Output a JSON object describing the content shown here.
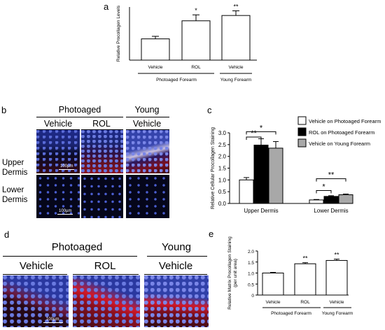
{
  "panel_labels": {
    "a": "a",
    "b": "b",
    "c": "c",
    "d": "d",
    "e": "e"
  },
  "panel_b": {
    "headers": {
      "photoaged": "Photoaged",
      "young": "Young",
      "vehicle": "Vehicle",
      "rol": "ROL",
      "vehicle_young": "Vehicle"
    },
    "rows": [
      "Upper Dermis",
      "Lower Dermis"
    ],
    "scale_bar": "100µm"
  },
  "panel_d": {
    "headers": {
      "photoaged": "Photoaged",
      "young": "Young",
      "vehicle": "Vehicle",
      "rol": "ROL",
      "vehicle_young": "Vehicle"
    },
    "scale_bar": "100µm"
  },
  "chart_data": [
    {
      "panel": "a",
      "type": "bar",
      "categories": [
        "Vehicle",
        "ROL",
        "Vehicle"
      ],
      "groups": [
        "Photoaged Forearm",
        "Young Forearm"
      ],
      "values": [
        1.0,
        1.85,
        2.1
      ],
      "errors": [
        0.12,
        0.28,
        0.22
      ],
      "significance": [
        "",
        "*",
        "**"
      ],
      "ylabel": "Relative Procollagen Levels",
      "ylim": [
        0,
        2.5
      ],
      "yticks": []
    },
    {
      "panel": "c",
      "type": "bar",
      "categories": [
        "Upper Dermis",
        "Lower Dermis"
      ],
      "series": [
        {
          "name": "Vehicle on Photoaged Forearm",
          "values": [
            1.0,
            0.15
          ],
          "errors": [
            0.1,
            0.02
          ],
          "color": "#ffffff"
        },
        {
          "name": "ROL on Photoaged Forearm",
          "values": [
            2.48,
            0.3
          ],
          "errors": [
            0.27,
            0.03
          ],
          "color": "#000000"
        },
        {
          "name": "Vehicle on Young Forearm",
          "values": [
            2.35,
            0.37
          ],
          "errors": [
            0.28,
            0.03
          ],
          "color": "#a8a8a8"
        }
      ],
      "significance": [
        {
          "group": "Upper Dermis",
          "from": 0,
          "to": 1,
          "mark": "**"
        },
        {
          "group": "Upper Dermis",
          "from": 0,
          "to": 2,
          "mark": "*"
        },
        {
          "group": "Lower Dermis",
          "from": 0,
          "to": 1,
          "mark": "*"
        },
        {
          "group": "Lower Dermis",
          "from": 0,
          "to": 2,
          "mark": "**"
        }
      ],
      "ylabel": "Relative Cellular Procollagen Staining",
      "ylim": [
        0,
        3.0
      ],
      "yticks": [
        "0.0",
        "0.5",
        "1.0",
        "1.5",
        "2.0",
        "2.5",
        "3.0"
      ],
      "legend": "top-right"
    },
    {
      "panel": "e",
      "type": "bar",
      "categories": [
        "Vehicle",
        "ROL",
        "Vehicle"
      ],
      "groups": [
        "Photoaged Forearm",
        "Young Forearm"
      ],
      "values": [
        1.0,
        1.42,
        1.57
      ],
      "errors": [
        0.03,
        0.05,
        0.06
      ],
      "significance": [
        "",
        "**",
        "**"
      ],
      "ylabel": "Relative Matrix Procollagen Staining\n(per unit area)",
      "ylim": [
        0,
        2.0
      ],
      "yticks": [
        "0",
        "0.5",
        "1.0",
        "1.5",
        "2.0"
      ]
    }
  ]
}
